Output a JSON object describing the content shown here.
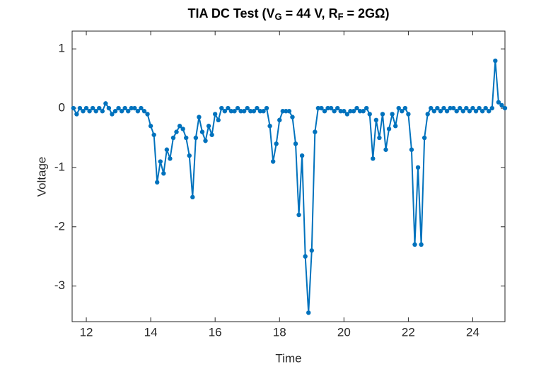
{
  "chart_data": {
    "type": "line",
    "title": [
      "TIA DC Test (V",
      "G",
      " = 44 V, R",
      "F",
      " = 2GΩ)"
    ],
    "x_label": "Time",
    "y_label": "Voltage",
    "xlim": [
      11.56,
      25
    ],
    "ylim": [
      -3.6,
      1.3
    ],
    "xticks": [
      12,
      14,
      16,
      18,
      20,
      22,
      24
    ],
    "yticks": [
      -3,
      -2,
      -1,
      0,
      1
    ],
    "grid": false,
    "series": [
      {
        "color": "#0072bd",
        "x": [
          11.6,
          11.7,
          11.8,
          11.9,
          12.0,
          12.1,
          12.2,
          12.3,
          12.4,
          12.5,
          12.6,
          12.7,
          12.8,
          12.9,
          13.0,
          13.1,
          13.2,
          13.3,
          13.4,
          13.5,
          13.6,
          13.7,
          13.8,
          13.9,
          14.0,
          14.1,
          14.2,
          14.3,
          14.4,
          14.5,
          14.6,
          14.7,
          14.8,
          14.9,
          15.0,
          15.1,
          15.2,
          15.3,
          15.4,
          15.5,
          15.6,
          15.7,
          15.8,
          15.9,
          16.0,
          16.1,
          16.2,
          16.3,
          16.4,
          16.5,
          16.6,
          16.7,
          16.8,
          16.9,
          17.0,
          17.1,
          17.2,
          17.3,
          17.4,
          17.5,
          17.6,
          17.7,
          17.8,
          17.9,
          18.0,
          18.1,
          18.2,
          18.3,
          18.4,
          18.5,
          18.6,
          18.7,
          18.8,
          18.9,
          19.0,
          19.1,
          19.2,
          19.3,
          19.4,
          19.5,
          19.6,
          19.7,
          19.8,
          19.9,
          20.0,
          20.1,
          20.2,
          20.3,
          20.4,
          20.5,
          20.6,
          20.7,
          20.8,
          20.9,
          21.0,
          21.1,
          21.2,
          21.3,
          21.4,
          21.5,
          21.6,
          21.7,
          21.8,
          21.9,
          22.0,
          22.1,
          22.2,
          22.3,
          22.4,
          22.5,
          22.6,
          22.7,
          22.8,
          22.9,
          23.0,
          23.1,
          23.2,
          23.3,
          23.4,
          23.5,
          23.6,
          23.7,
          23.8,
          23.9,
          24.0,
          24.1,
          24.2,
          24.3,
          24.4,
          24.5,
          24.6,
          24.7,
          24.8,
          24.9,
          25.0
        ],
        "values": [
          0,
          -0.1,
          0,
          -0.05,
          0,
          -0.05,
          0,
          -0.05,
          0,
          -0.05,
          0.08,
          0,
          -0.1,
          -0.05,
          0,
          -0.05,
          0,
          -0.05,
          0,
          0,
          -0.05,
          0,
          -0.05,
          -0.1,
          -0.3,
          -0.45,
          -1.25,
          -0.9,
          -1.1,
          -0.7,
          -0.85,
          -0.5,
          -0.4,
          -0.3,
          -0.35,
          -0.5,
          -0.8,
          -1.5,
          -0.5,
          -0.15,
          -0.4,
          -0.55,
          -0.3,
          -0.45,
          -0.1,
          -0.2,
          0,
          -0.05,
          0,
          -0.05,
          -0.05,
          0,
          -0.05,
          -0.05,
          0,
          -0.05,
          -0.05,
          0,
          -0.05,
          -0.05,
          0,
          -0.3,
          -0.9,
          -0.6,
          -0.2,
          -0.05,
          -0.05,
          -0.05,
          -0.15,
          -0.6,
          -1.8,
          -0.8,
          -2.5,
          -3.45,
          -2.4,
          -0.4,
          0,
          0,
          -0.05,
          0,
          0,
          -0.05,
          0,
          -0.05,
          -0.05,
          -0.1,
          -0.05,
          -0.05,
          0,
          -0.05,
          -0.05,
          0,
          -0.1,
          -0.85,
          -0.2,
          -0.5,
          -0.1,
          -0.7,
          -0.35,
          -0.1,
          -0.3,
          0,
          -0.05,
          0,
          -0.1,
          -0.7,
          -2.3,
          -1.0,
          -2.3,
          -0.5,
          -0.1,
          0,
          -0.05,
          0,
          -0.05,
          0,
          -0.05,
          0,
          0,
          -0.05,
          0,
          -0.05,
          0,
          -0.05,
          0,
          -0.05,
          0,
          -0.05,
          0,
          -0.05,
          0,
          0.8,
          0.1,
          0.05,
          0
        ]
      }
    ]
  }
}
